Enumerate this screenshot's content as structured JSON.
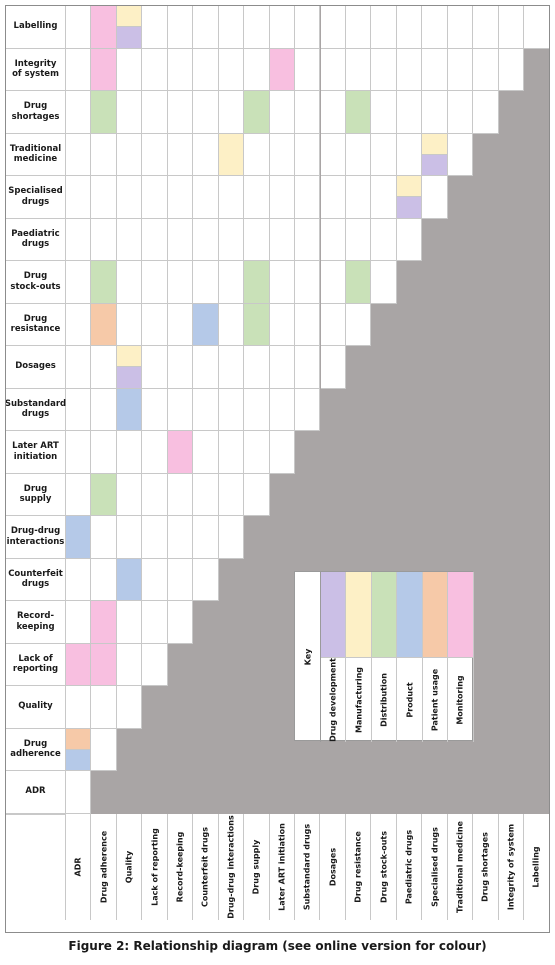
{
  "caption": "Figure 2: Relationship diagram (see online version for colour)",
  "labels": [
    "ADR",
    "Drug adherence",
    "Quality",
    "Lack of reporting",
    "Record-keeping",
    "Counterfeit drugs",
    "Drug-drug interactions",
    "Drug supply",
    "Later ART initiation",
    "Substandard drugs",
    "Dosages",
    "Drug resistance",
    "Drug stock-outs",
    "Paediatric drugs",
    "Specialised drugs",
    "Traditional medicine",
    "Drug shortages",
    "Integrity of system",
    "Labelling"
  ],
  "row_labels": [
    "Labelling",
    "Integrity of system",
    "Drug shortages",
    "Traditional medicine",
    "Specialised drugs",
    "Paediatric drugs",
    "Drug stock-outs",
    "Drug resistance",
    "Dosages",
    "Substandard drugs",
    "Later ART initiation",
    "Drug supply",
    "Drug-drug interactions",
    "Counterfeit drugs",
    "Record-keeping",
    "Lack of reporting",
    "Quality",
    "Drug adherence",
    "ADR"
  ],
  "key": {
    "title": "Key",
    "items": [
      {
        "label": "Drug development",
        "color": "#cbbfe6"
      },
      {
        "label": "Manufacturing",
        "color": "#fdf0c6"
      },
      {
        "label": "Distribution",
        "color": "#c9e1b8"
      },
      {
        "label": "Product",
        "color": "#b5c9e8"
      },
      {
        "label": "Patient usage",
        "color": "#f6c9a8"
      },
      {
        "label": "Monitoring",
        "color": "#f8bfe0"
      }
    ]
  },
  "colors": {
    "Drug development": "#cbbfe6",
    "Manufacturing": "#fdf0c6",
    "Distribution": "#c9e1b8",
    "Product": "#b5c9e8",
    "Patient usage": "#f6c9a8",
    "Monitoring": "#f8bfe0",
    "empty": "#a9a5a5",
    "grid": "#c8c8c8"
  },
  "relations": [
    {
      "row": "Labelling",
      "col": "Drug adherence",
      "categories": [
        "Monitoring"
      ]
    },
    {
      "row": "Labelling",
      "col": "Quality",
      "categories": [
        "Manufacturing",
        "Drug development"
      ]
    },
    {
      "row": "Integrity of system",
      "col": "Drug adherence",
      "categories": [
        "Monitoring"
      ]
    },
    {
      "row": "Integrity of system",
      "col": "Later ART initiation",
      "categories": [
        "Monitoring"
      ]
    },
    {
      "row": "Drug shortages",
      "col": "Drug adherence",
      "categories": [
        "Distribution"
      ]
    },
    {
      "row": "Drug shortages",
      "col": "Drug supply",
      "categories": [
        "Distribution"
      ]
    },
    {
      "row": "Drug shortages",
      "col": "Drug resistance",
      "categories": [
        "Distribution"
      ]
    },
    {
      "row": "Traditional medicine",
      "col": "Drug-drug interactions",
      "categories": [
        "Manufacturing"
      ]
    },
    {
      "row": "Traditional medicine",
      "col": "Specialised drugs",
      "categories": [
        "Manufacturing",
        "Drug development"
      ]
    },
    {
      "row": "Specialised drugs",
      "col": "Paediatric drugs",
      "categories": [
        "Manufacturing",
        "Drug development"
      ]
    },
    {
      "row": "Drug stock-outs",
      "col": "Drug adherence",
      "categories": [
        "Distribution"
      ]
    },
    {
      "row": "Drug stock-outs",
      "col": "Drug supply",
      "categories": [
        "Distribution"
      ]
    },
    {
      "row": "Drug stock-outs",
      "col": "Drug resistance",
      "categories": [
        "Distribution"
      ]
    },
    {
      "row": "Drug resistance",
      "col": "Drug adherence",
      "categories": [
        "Patient usage"
      ]
    },
    {
      "row": "Drug resistance",
      "col": "Counterfeit drugs",
      "categories": [
        "Product"
      ]
    },
    {
      "row": "Drug resistance",
      "col": "Drug supply",
      "categories": [
        "Distribution"
      ]
    },
    {
      "row": "Dosages",
      "col": "Quality",
      "categories": [
        "Manufacturing",
        "Drug development"
      ]
    },
    {
      "row": "Substandard drugs",
      "col": "Quality",
      "categories": [
        "Product"
      ]
    },
    {
      "row": "Later ART initiation",
      "col": "Record-keeping",
      "categories": [
        "Monitoring"
      ]
    },
    {
      "row": "Drug supply",
      "col": "Drug adherence",
      "categories": [
        "Distribution"
      ]
    },
    {
      "row": "Drug-drug interactions",
      "col": "ADR",
      "categories": [
        "Product"
      ]
    },
    {
      "row": "Counterfeit drugs",
      "col": "Quality",
      "categories": [
        "Product"
      ]
    },
    {
      "row": "Record-keeping",
      "col": "Drug adherence",
      "categories": [
        "Monitoring"
      ]
    },
    {
      "row": "Lack of reporting",
      "col": "ADR",
      "categories": [
        "Monitoring"
      ]
    },
    {
      "row": "Lack of reporting",
      "col": "Drug adherence",
      "categories": [
        "Monitoring"
      ]
    },
    {
      "row": "Drug adherence",
      "col": "ADR",
      "categories": [
        "Patient usage",
        "Product"
      ]
    }
  ]
}
